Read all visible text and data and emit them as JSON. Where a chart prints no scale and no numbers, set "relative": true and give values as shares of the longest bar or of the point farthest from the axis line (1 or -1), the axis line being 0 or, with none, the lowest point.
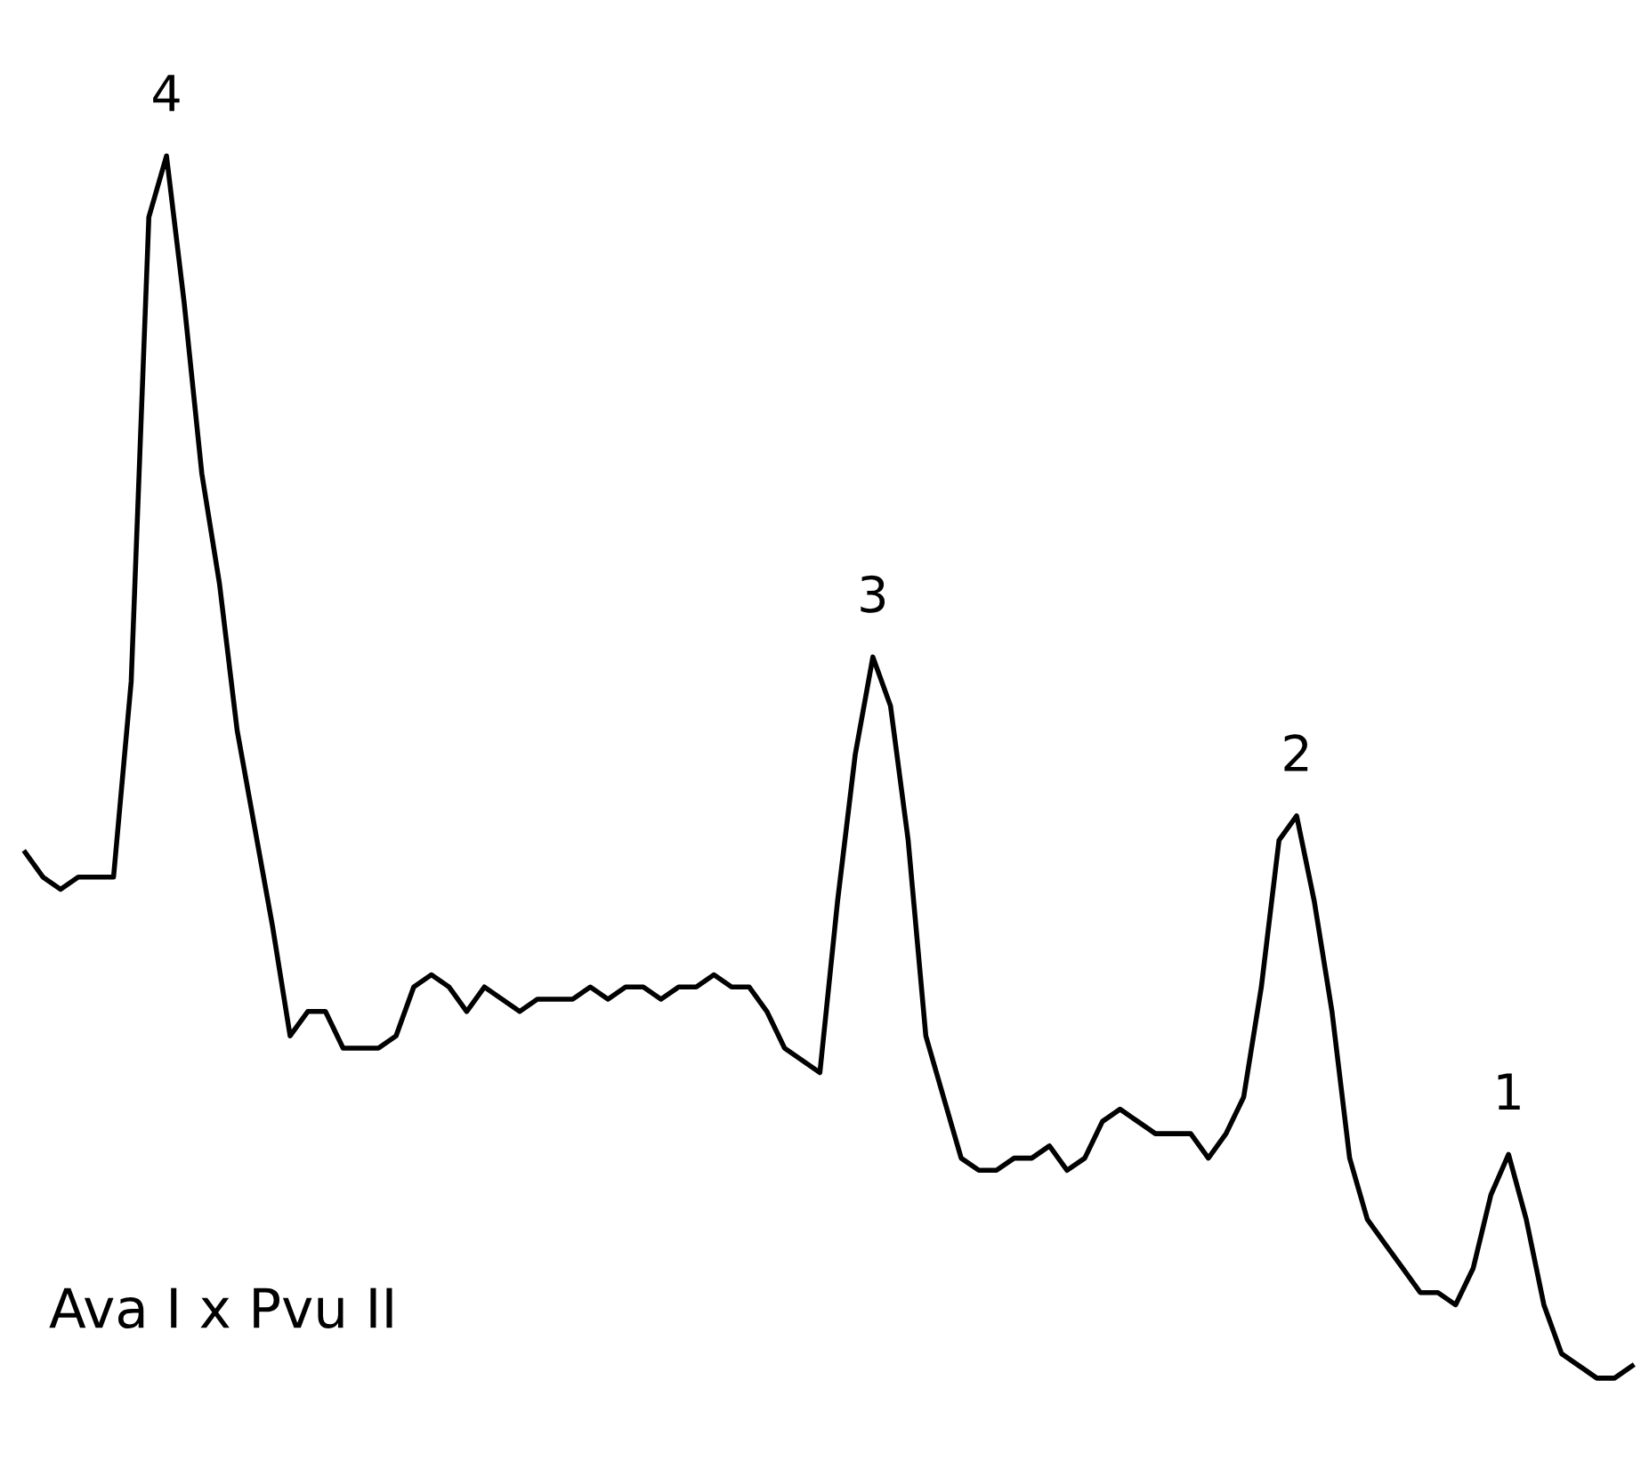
{
  "chart_data": {
    "type": "line",
    "relative": true,
    "grid": false,
    "legend": false,
    "marker": "none",
    "line_style": "solid",
    "categories": [
      null,
      null,
      null,
      null,
      null,
      null,
      null,
      null,
      null,
      null,
      null,
      null,
      null,
      null,
      null,
      null,
      null,
      null,
      null,
      null,
      null,
      null,
      null,
      null,
      null,
      null,
      null,
      null,
      null,
      null,
      null,
      null,
      null,
      null,
      null,
      null,
      null,
      null,
      null,
      null,
      null,
      null,
      null,
      null,
      null,
      null,
      null,
      null,
      null,
      null,
      null,
      null,
      null,
      null,
      null,
      null,
      null,
      null,
      null,
      null,
      null,
      null,
      null,
      null,
      null,
      null,
      null,
      null,
      null,
      null,
      null,
      null,
      null,
      null,
      null,
      null,
      null,
      null,
      null,
      null,
      null,
      null,
      null,
      null,
      null,
      null,
      null,
      null,
      null,
      null,
      null,
      null
    ],
    "series": [
      {
        "color": "#000000",
        "values": [
          0.43,
          0.41,
          0.4,
          0.41,
          0.41,
          0.41,
          0.57,
          0.95,
          1.0,
          0.88,
          0.74,
          0.65,
          0.53,
          0.45,
          0.37,
          0.28,
          0.3,
          0.3,
          0.27,
          0.27,
          0.27,
          0.28,
          0.32,
          0.33,
          0.32,
          0.3,
          0.32,
          0.31,
          0.3,
          0.31,
          0.31,
          0.31,
          0.32,
          0.31,
          0.32,
          0.32,
          0.31,
          0.32,
          0.32,
          0.33,
          0.32,
          0.32,
          0.3,
          0.27,
          0.26,
          0.25,
          0.39,
          0.51,
          0.59,
          0.55,
          0.44,
          0.28,
          0.23,
          0.18,
          0.17,
          0.17,
          0.18,
          0.18,
          0.19,
          0.17,
          0.18,
          0.21,
          0.22,
          0.21,
          0.2,
          0.2,
          0.2,
          0.18,
          0.2,
          0.23,
          0.32,
          0.44,
          0.46,
          0.39,
          0.3,
          0.18,
          0.13,
          0.11,
          0.09,
          0.07,
          0.07,
          0.06,
          0.09,
          0.15,
          0.183,
          0.13,
          0.06,
          0.02,
          0.01,
          0.0,
          0.0,
          0.01
        ]
      }
    ],
    "annotations": [
      {
        "text": "4",
        "y": 1.0
      },
      {
        "text": "3",
        "y": 0.59
      },
      {
        "text": "2",
        "y": 0.46
      },
      {
        "text": "1",
        "y": 0.183
      },
      "Ava I x Pvu II"
    ]
  }
}
